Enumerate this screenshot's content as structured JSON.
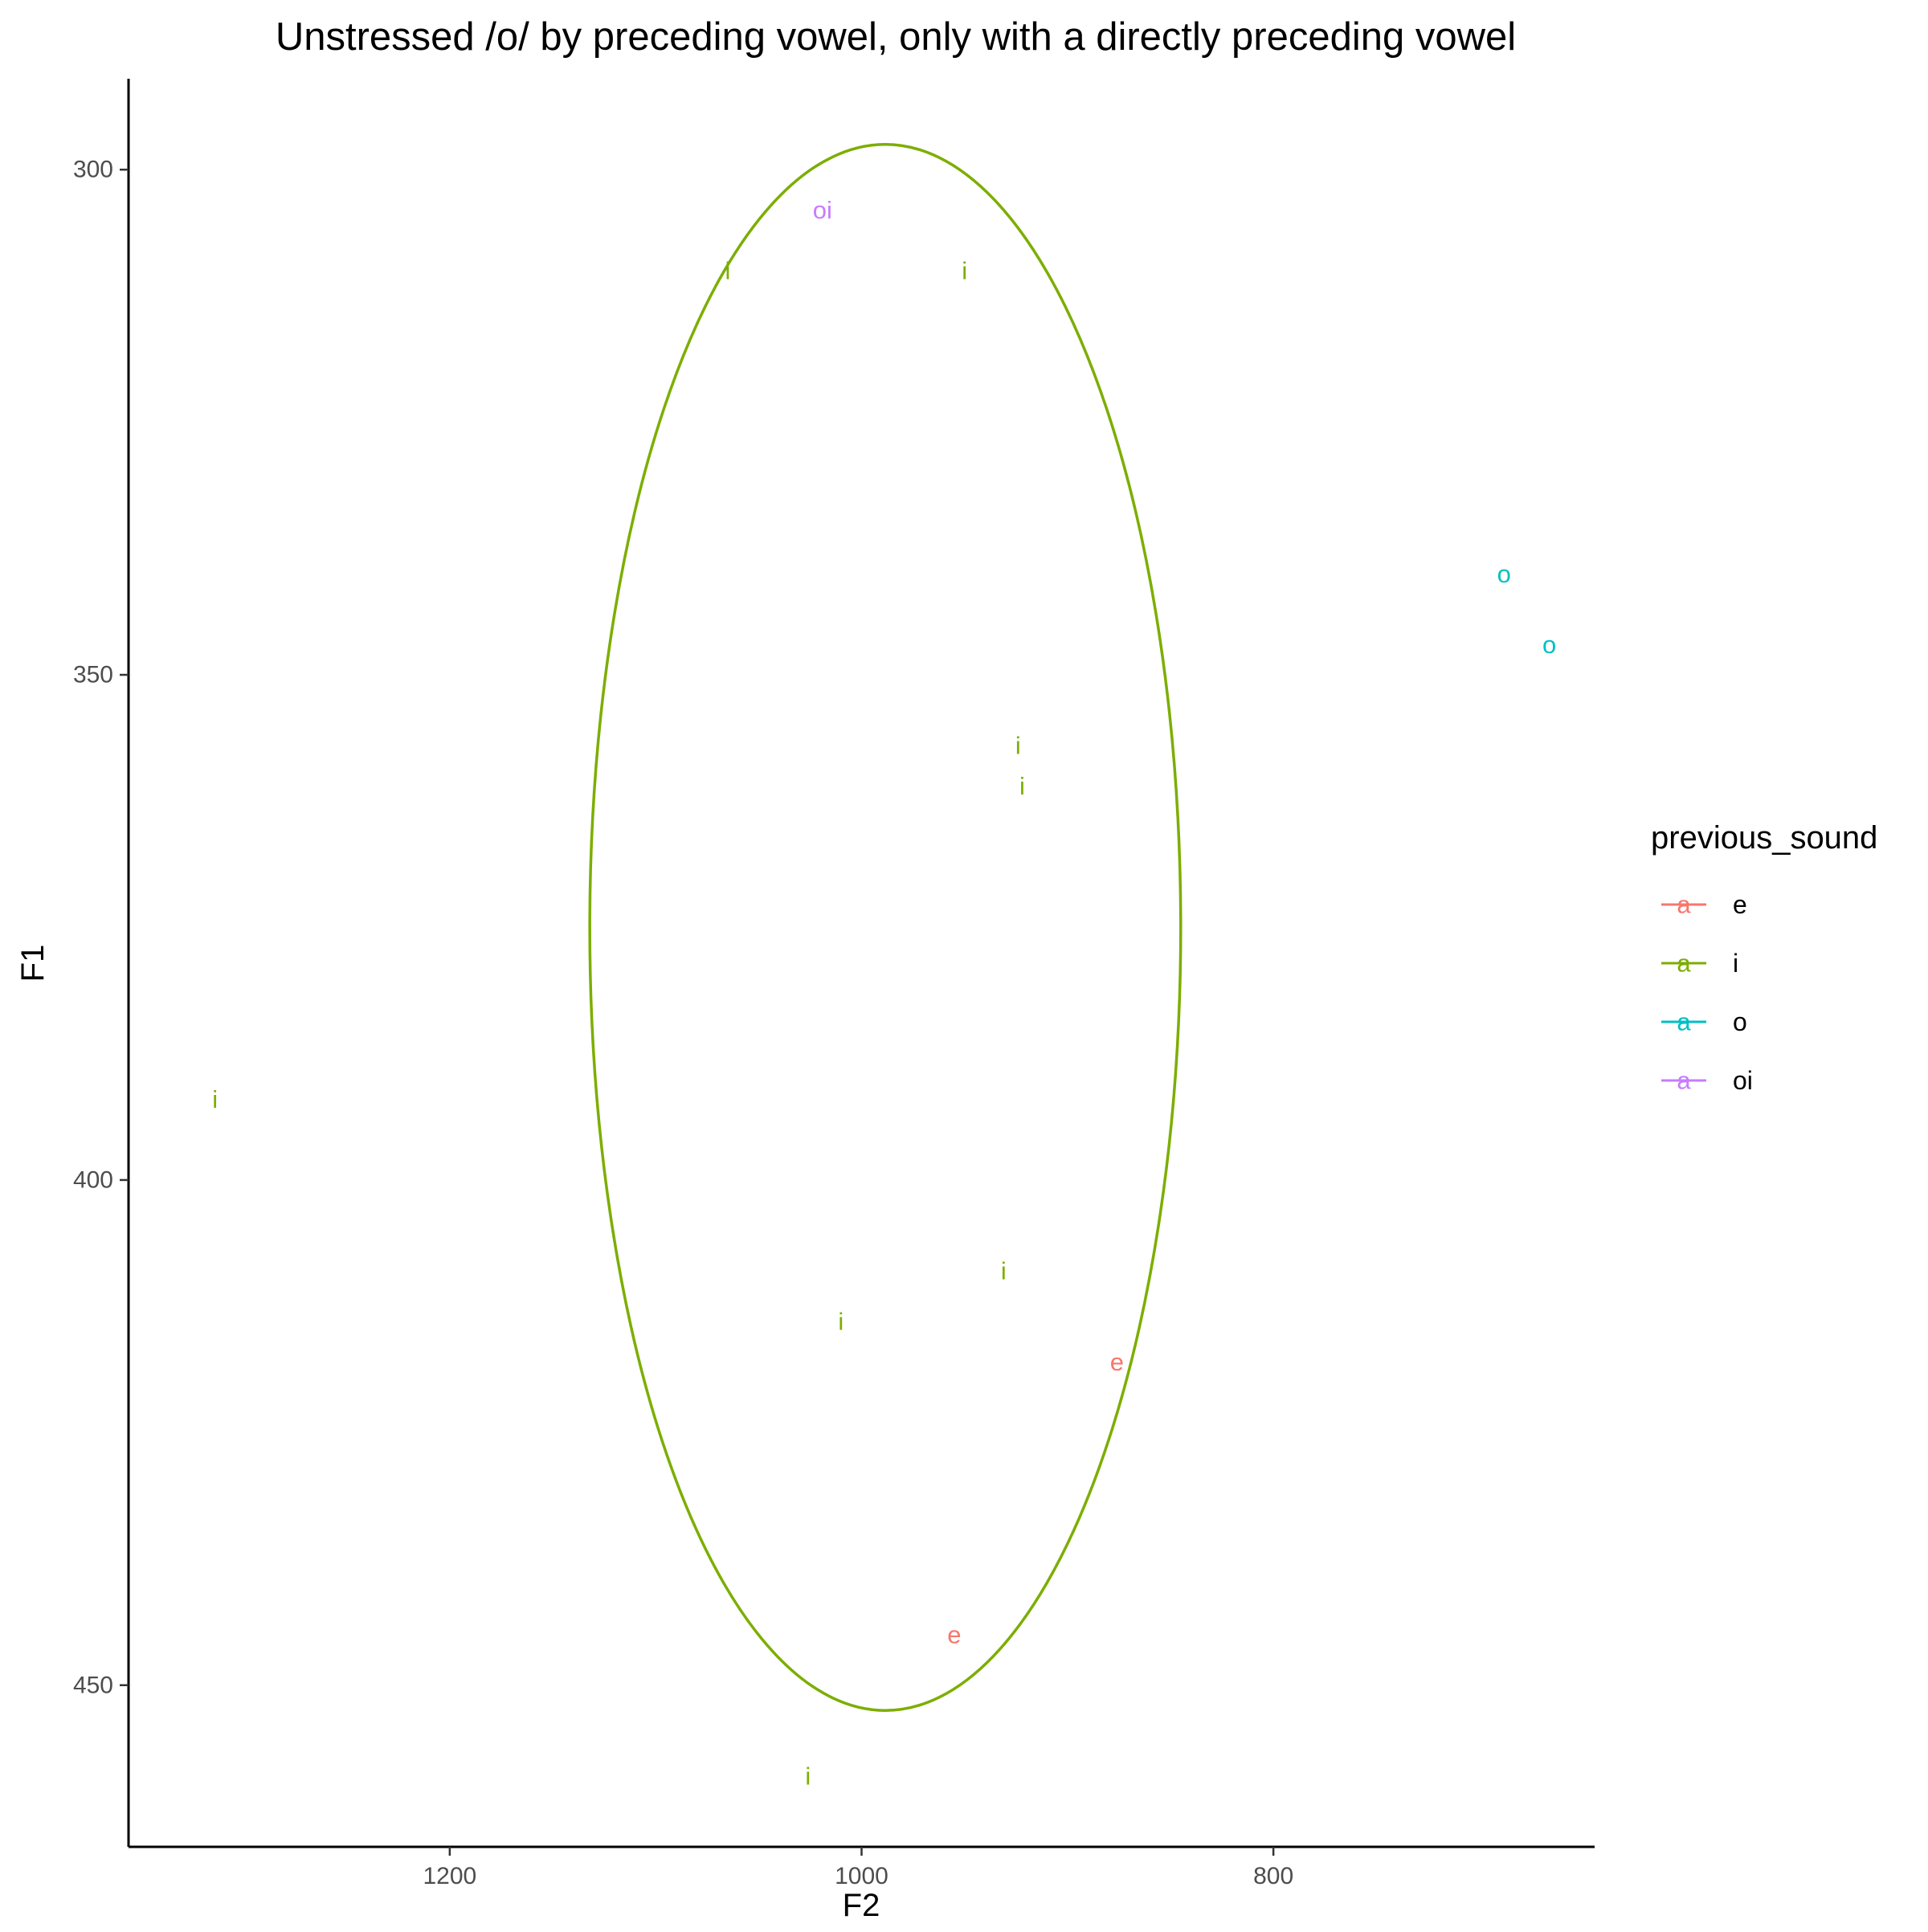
{
  "chart_data": {
    "type": "scatter",
    "title": "Unstressed /o/ by preceding vowel, only with a directly preceding vowel",
    "xlabel": "F2",
    "ylabel": "F1",
    "x_reversed": true,
    "y_reversed": true,
    "xlim": [
      1356,
      644
    ],
    "ylim": [
      291,
      466
    ],
    "x_ticks": [
      1200,
      1000,
      800
    ],
    "y_ticks": [
      300,
      350,
      400,
      450
    ],
    "grid": false,
    "legend": {
      "title": "previous_sound",
      "position": "right",
      "glyph": "a",
      "entries": [
        {
          "label": "e",
          "color": "#F8766D"
        },
        {
          "label": "i",
          "color": "#7CAE00"
        },
        {
          "label": "o",
          "color": "#00BFC4"
        },
        {
          "label": "oi",
          "color": "#C77CFF"
        }
      ]
    },
    "points": [
      {
        "label": "oi",
        "group": "oi",
        "x": 1019,
        "y": 304
      },
      {
        "label": "i",
        "group": "i",
        "x": 1065,
        "y": 310
      },
      {
        "label": "i",
        "group": "i",
        "x": 950,
        "y": 310
      },
      {
        "label": "o",
        "group": "o",
        "x": 688,
        "y": 340
      },
      {
        "label": "o",
        "group": "o",
        "x": 666,
        "y": 347
      },
      {
        "label": "i",
        "group": "i",
        "x": 924,
        "y": 357
      },
      {
        "label": "i",
        "group": "i",
        "x": 922,
        "y": 361
      },
      {
        "label": "i",
        "group": "i",
        "x": 1314,
        "y": 392
      },
      {
        "label": "i",
        "group": "i",
        "x": 931,
        "y": 409
      },
      {
        "label": "i",
        "group": "i",
        "x": 1010,
        "y": 414
      },
      {
        "label": "e",
        "group": "e",
        "x": 876,
        "y": 418
      },
      {
        "label": "e",
        "group": "e",
        "x": 955,
        "y": 445
      },
      {
        "label": "i",
        "group": "i",
        "x": 1026,
        "y": 459
      }
    ],
    "ellipses": [
      {
        "group": "i",
        "center_x": 988.5,
        "center_y": 375.0,
        "radius_x": 143.5,
        "radius_y": 77.5
      }
    ]
  }
}
